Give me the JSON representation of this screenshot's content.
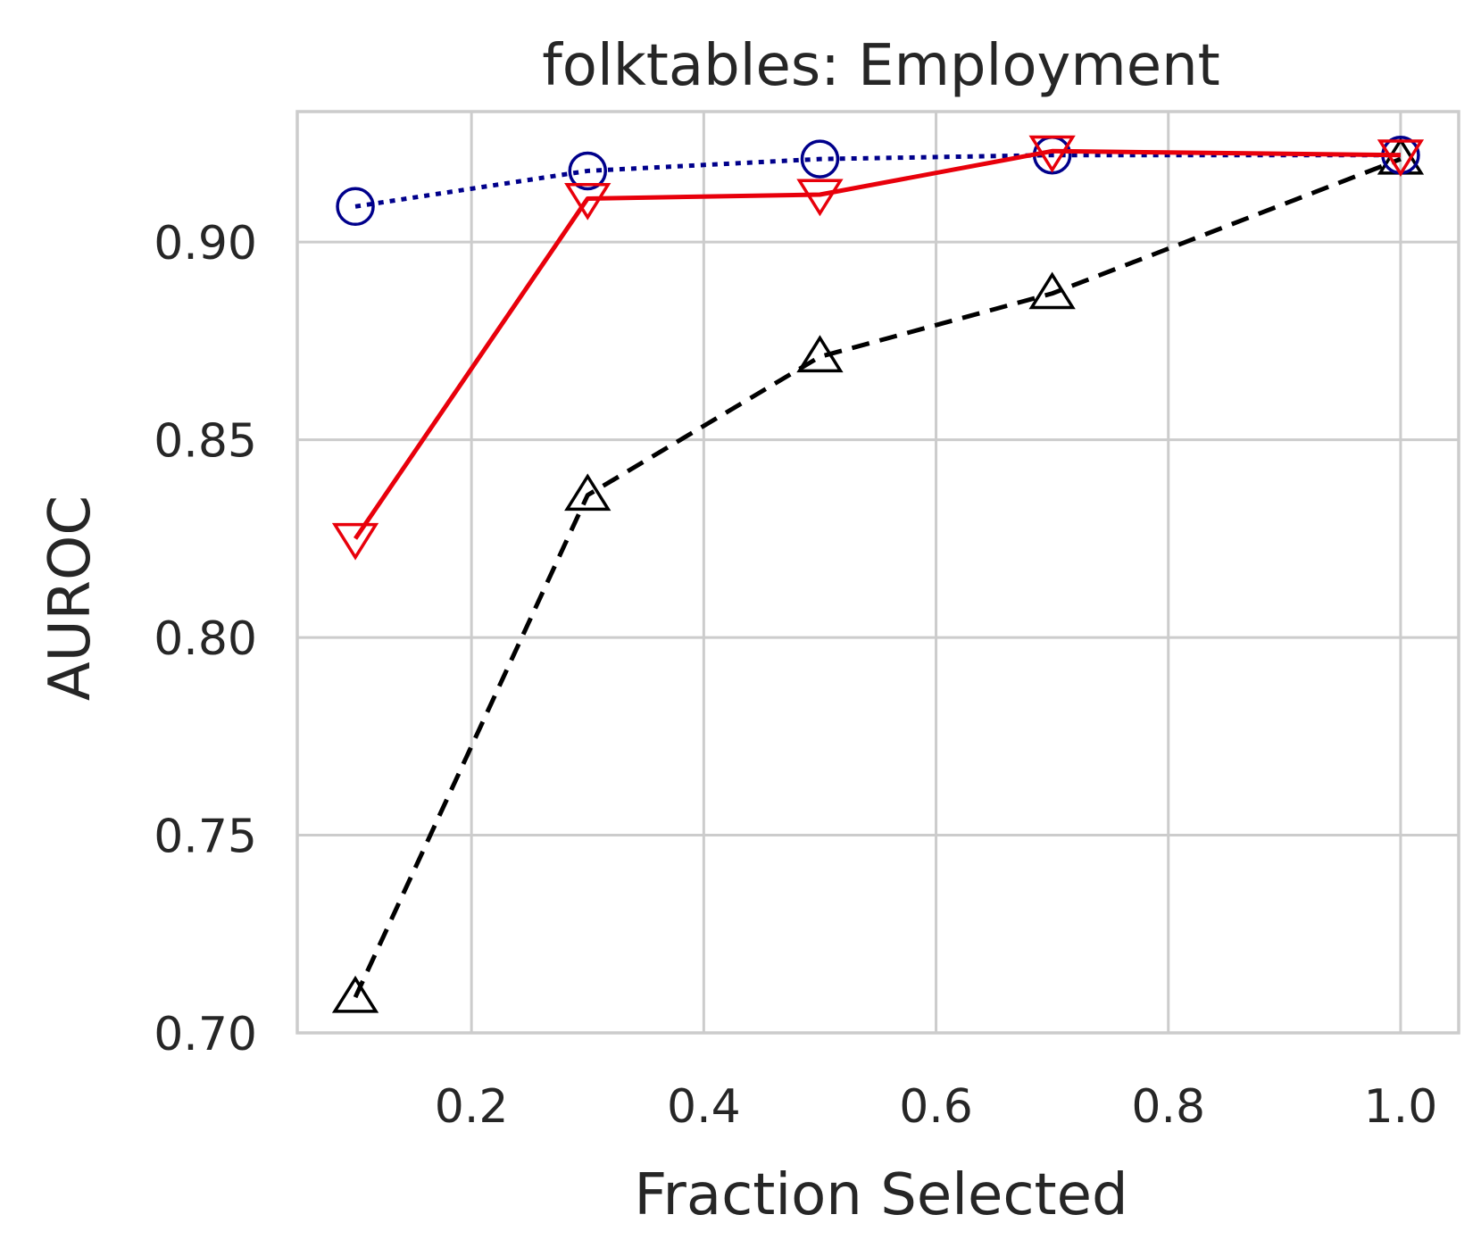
{
  "chart_data": {
    "type": "line",
    "title": "folktables: Employment",
    "xlabel": "Fraction Selected",
    "ylabel": "AUROC",
    "xlim": [
      0.05,
      1.05
    ],
    "ylim": [
      0.7,
      0.933
    ],
    "xticks": [
      0.2,
      0.4,
      0.6,
      0.8,
      1.0
    ],
    "xtick_labels": [
      "0.2",
      "0.4",
      "0.6",
      "0.8",
      "1.0"
    ],
    "yticks": [
      0.7,
      0.75,
      0.8,
      0.85,
      0.9
    ],
    "ytick_labels": [
      "0.70",
      "0.75",
      "0.80",
      "0.85",
      "0.90"
    ],
    "grid": true,
    "x": [
      0.1,
      0.3,
      0.5,
      0.7,
      1.0
    ],
    "series": [
      {
        "values": [
          0.709,
          0.836,
          0.871,
          0.887,
          0.921
        ],
        "color": "#000000",
        "linestyle": "dashed",
        "marker": "triangle-up"
      },
      {
        "values": [
          0.909,
          0.918,
          0.921,
          0.922,
          0.922
        ],
        "color": "#00008b",
        "linestyle": "dotted",
        "marker": "circle"
      },
      {
        "values": [
          0.825,
          0.911,
          0.912,
          0.923,
          0.922
        ],
        "color": "#e8000b",
        "linestyle": "solid",
        "marker": "triangle-down"
      }
    ]
  }
}
